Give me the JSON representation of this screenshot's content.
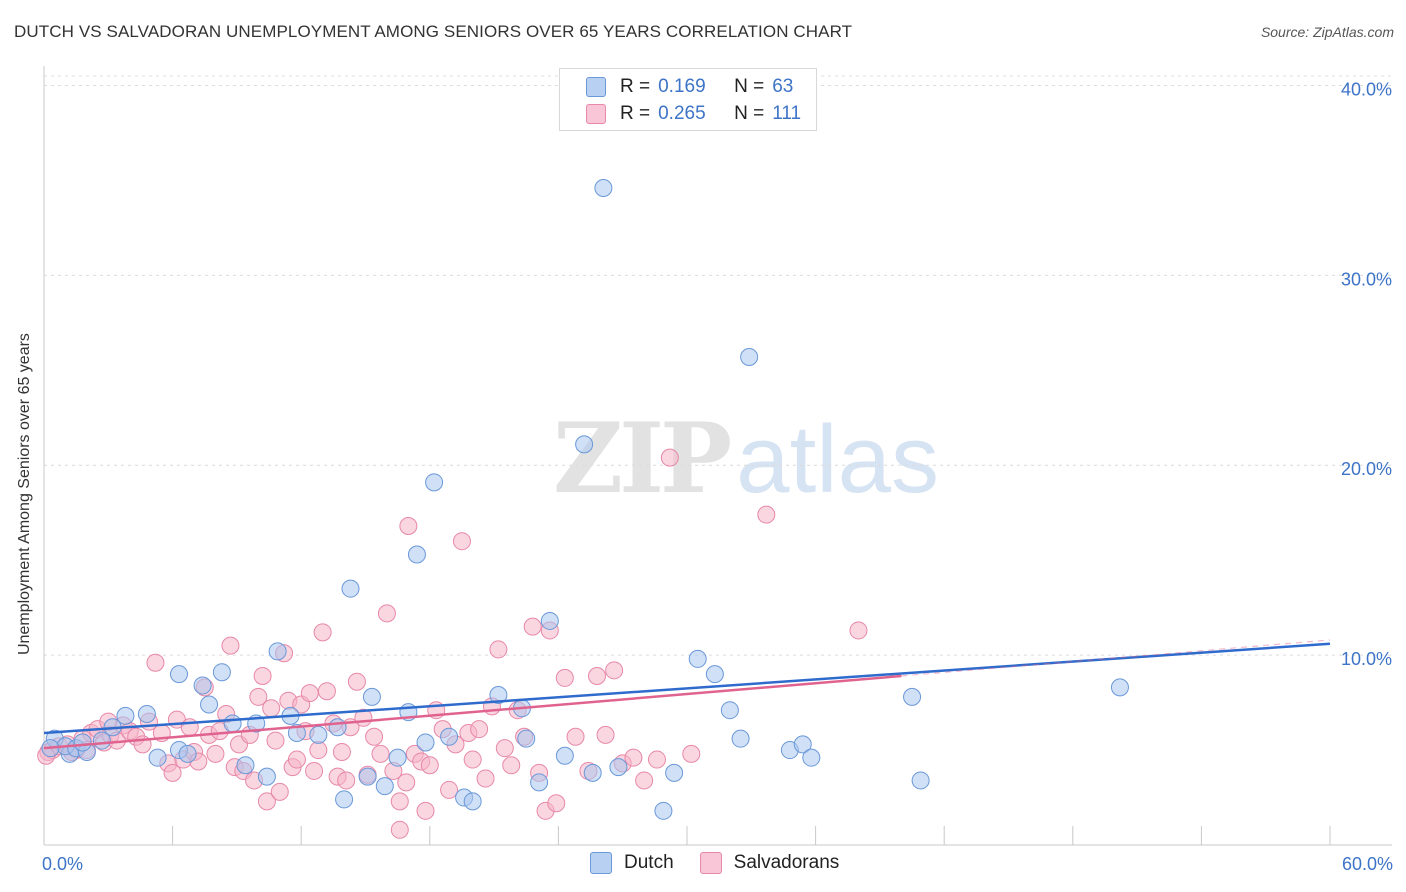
{
  "title": "DUTCH VS SALVADORAN UNEMPLOYMENT AMONG SENIORS OVER 65 YEARS CORRELATION CHART",
  "source": "Source: ZipAtlas.com",
  "watermark": {
    "part1": "ZIP",
    "part2": "atlas"
  },
  "colors": {
    "dutch_fill": "#a9c6ef",
    "dutch_stroke": "#6a98d8",
    "dutch_line": "#2f6bcc",
    "salv_fill": "#f5b5c9",
    "salv_stroke": "#e788a8",
    "salv_line": "#e0638f",
    "grid": "#dcdcdc",
    "tick_label": "#3d74c7"
  },
  "legend": {
    "rows": [
      {
        "r_label": "R =",
        "r_value": "0.169",
        "n_label": "N =",
        "n_value": "63",
        "series": "dutch"
      },
      {
        "r_label": "R =",
        "r_value": "0.265",
        "n_label": "N =",
        "n_value": "111",
        "series": "salv"
      }
    ]
  },
  "bottom_legend": [
    "Dutch",
    "Salvadorans"
  ],
  "chart_data": {
    "type": "scatter",
    "title": "DUTCH VS SALVADORAN UNEMPLOYMENT AMONG SENIORS OVER 65 YEARS CORRELATION CHART",
    "xlabel": "",
    "ylabel": "Unemployment Among Seniors over 65 years",
    "xlim": [
      0,
      60
    ],
    "ylim": [
      0,
      40.5
    ],
    "x_tick_labels": [
      "0.0%",
      "60.0%"
    ],
    "y_ticks": [
      10,
      20,
      30,
      40
    ],
    "y_tick_labels": [
      "10.0%",
      "20.0%",
      "30.0%",
      "40.0%"
    ],
    "grid": true,
    "legend_position": "top-center",
    "series": [
      {
        "name": "Dutch",
        "r": 0.169,
        "n": 63,
        "trend": {
          "x0": 0,
          "y0": 5.9,
          "x1": 60,
          "y1": 10.6
        },
        "points": [
          [
            0.5,
            5.6
          ],
          [
            1.2,
            4.8
          ],
          [
            1.0,
            5.2
          ],
          [
            1.5,
            5.1
          ],
          [
            2.0,
            4.9
          ],
          [
            2.7,
            5.5
          ],
          [
            3.2,
            6.2
          ],
          [
            3.8,
            6.8
          ],
          [
            4.8,
            6.9
          ],
          [
            5.3,
            4.6
          ],
          [
            6.3,
            5.0
          ],
          [
            6.3,
            9.0
          ],
          [
            6.7,
            4.8
          ],
          [
            7.4,
            8.4
          ],
          [
            7.7,
            7.4
          ],
          [
            8.3,
            9.1
          ],
          [
            8.8,
            6.4
          ],
          [
            9.4,
            4.2
          ],
          [
            9.9,
            6.4
          ],
          [
            10.4,
            3.6
          ],
          [
            10.9,
            10.2
          ],
          [
            11.5,
            6.8
          ],
          [
            11.8,
            5.9
          ],
          [
            12.8,
            5.8
          ],
          [
            13.7,
            6.2
          ],
          [
            14.0,
            2.4
          ],
          [
            14.3,
            13.5
          ],
          [
            15.1,
            3.6
          ],
          [
            15.3,
            7.8
          ],
          [
            15.9,
            3.1
          ],
          [
            16.5,
            4.6
          ],
          [
            17.0,
            7.0
          ],
          [
            17.4,
            15.3
          ],
          [
            17.8,
            5.4
          ],
          [
            18.2,
            19.1
          ],
          [
            18.9,
            5.7
          ],
          [
            19.6,
            2.5
          ],
          [
            20.0,
            2.3
          ],
          [
            21.2,
            7.9
          ],
          [
            22.3,
            7.2
          ],
          [
            22.5,
            5.6
          ],
          [
            23.1,
            3.3
          ],
          [
            23.6,
            11.8
          ],
          [
            24.3,
            4.7
          ],
          [
            25.2,
            21.1
          ],
          [
            25.6,
            3.8
          ],
          [
            26.1,
            34.6
          ],
          [
            26.8,
            4.1
          ],
          [
            28.9,
            1.8
          ],
          [
            29.4,
            3.8
          ],
          [
            30.5,
            9.8
          ],
          [
            31.3,
            9.0
          ],
          [
            32.0,
            7.1
          ],
          [
            32.5,
            5.6
          ],
          [
            32.9,
            25.7
          ],
          [
            34.8,
            5.0
          ],
          [
            35.4,
            5.3
          ],
          [
            35.8,
            4.6
          ],
          [
            40.5,
            7.8
          ],
          [
            40.9,
            3.4
          ],
          [
            50.2,
            8.3
          ],
          [
            0.3,
            5.1
          ],
          [
            1.8,
            5.4
          ]
        ]
      },
      {
        "name": "Salvadorans",
        "r": 0.265,
        "n": 111,
        "trend": {
          "x0": 0,
          "y0": 5.1,
          "x1": 40,
          "y1": 8.9
        },
        "points": [
          [
            0.2,
            4.9
          ],
          [
            0.4,
            5.0
          ],
          [
            0.7,
            5.2
          ],
          [
            1.1,
            5.3
          ],
          [
            1.5,
            5.0
          ],
          [
            1.8,
            5.6
          ],
          [
            2.2,
            5.9
          ],
          [
            2.5,
            6.1
          ],
          [
            2.8,
            5.4
          ],
          [
            3.1,
            5.8
          ],
          [
            3.4,
            5.5
          ],
          [
            3.7,
            6.3
          ],
          [
            4.0,
            6.0
          ],
          [
            4.3,
            5.7
          ],
          [
            4.6,
            5.3
          ],
          [
            4.9,
            6.5
          ],
          [
            5.2,
            9.6
          ],
          [
            5.5,
            5.9
          ],
          [
            5.8,
            4.3
          ],
          [
            6.0,
            3.8
          ],
          [
            6.2,
            6.6
          ],
          [
            6.5,
            4.5
          ],
          [
            6.8,
            6.2
          ],
          [
            7.0,
            4.9
          ],
          [
            7.2,
            4.4
          ],
          [
            7.5,
            8.3
          ],
          [
            7.7,
            5.8
          ],
          [
            8.0,
            4.8
          ],
          [
            8.2,
            6.0
          ],
          [
            8.5,
            6.9
          ],
          [
            8.7,
            10.5
          ],
          [
            8.9,
            4.1
          ],
          [
            9.1,
            5.3
          ],
          [
            9.3,
            3.9
          ],
          [
            9.6,
            5.8
          ],
          [
            9.8,
            3.4
          ],
          [
            10.0,
            7.8
          ],
          [
            10.2,
            8.9
          ],
          [
            10.4,
            2.3
          ],
          [
            10.6,
            7.2
          ],
          [
            10.8,
            5.5
          ],
          [
            11.0,
            2.8
          ],
          [
            11.2,
            10.1
          ],
          [
            11.4,
            7.6
          ],
          [
            11.6,
            4.1
          ],
          [
            11.8,
            4.5
          ],
          [
            12.0,
            7.4
          ],
          [
            12.2,
            6.0
          ],
          [
            12.4,
            8.0
          ],
          [
            12.6,
            3.9
          ],
          [
            12.8,
            5.0
          ],
          [
            13.0,
            11.2
          ],
          [
            13.2,
            8.1
          ],
          [
            13.5,
            6.4
          ],
          [
            13.7,
            3.6
          ],
          [
            13.9,
            4.9
          ],
          [
            14.1,
            3.4
          ],
          [
            14.3,
            6.2
          ],
          [
            14.6,
            8.6
          ],
          [
            14.9,
            6.7
          ],
          [
            15.1,
            3.7
          ],
          [
            15.4,
            5.7
          ],
          [
            15.7,
            4.8
          ],
          [
            16.0,
            12.2
          ],
          [
            16.3,
            3.9
          ],
          [
            16.6,
            2.3
          ],
          [
            16.9,
            3.3
          ],
          [
            17.0,
            16.8
          ],
          [
            17.3,
            4.8
          ],
          [
            17.6,
            4.4
          ],
          [
            17.8,
            1.8
          ],
          [
            18.0,
            4.2
          ],
          [
            18.3,
            7.1
          ],
          [
            18.6,
            6.1
          ],
          [
            18.9,
            2.9
          ],
          [
            19.2,
            5.3
          ],
          [
            19.5,
            16.0
          ],
          [
            19.8,
            5.9
          ],
          [
            20.0,
            4.5
          ],
          [
            20.3,
            6.1
          ],
          [
            20.6,
            3.5
          ],
          [
            20.9,
            7.3
          ],
          [
            21.2,
            10.3
          ],
          [
            21.5,
            5.1
          ],
          [
            21.8,
            4.2
          ],
          [
            22.1,
            7.1
          ],
          [
            22.4,
            5.7
          ],
          [
            22.8,
            11.5
          ],
          [
            23.1,
            3.8
          ],
          [
            23.4,
            1.8
          ],
          [
            23.6,
            11.3
          ],
          [
            23.9,
            2.2
          ],
          [
            24.3,
            8.8
          ],
          [
            24.8,
            5.7
          ],
          [
            25.4,
            3.9
          ],
          [
            25.8,
            8.9
          ],
          [
            26.2,
            5.8
          ],
          [
            26.6,
            9.2
          ],
          [
            27.0,
            4.3
          ],
          [
            27.5,
            4.6
          ],
          [
            28.0,
            3.4
          ],
          [
            28.6,
            4.5
          ],
          [
            29.2,
            20.4
          ],
          [
            30.2,
            4.8
          ],
          [
            33.7,
            17.4
          ],
          [
            38.0,
            11.3
          ],
          [
            0.1,
            4.7
          ],
          [
            1.3,
            4.9
          ],
          [
            2.0,
            5.0
          ],
          [
            3.0,
            6.5
          ],
          [
            16.6,
            0.8
          ]
        ]
      }
    ]
  }
}
